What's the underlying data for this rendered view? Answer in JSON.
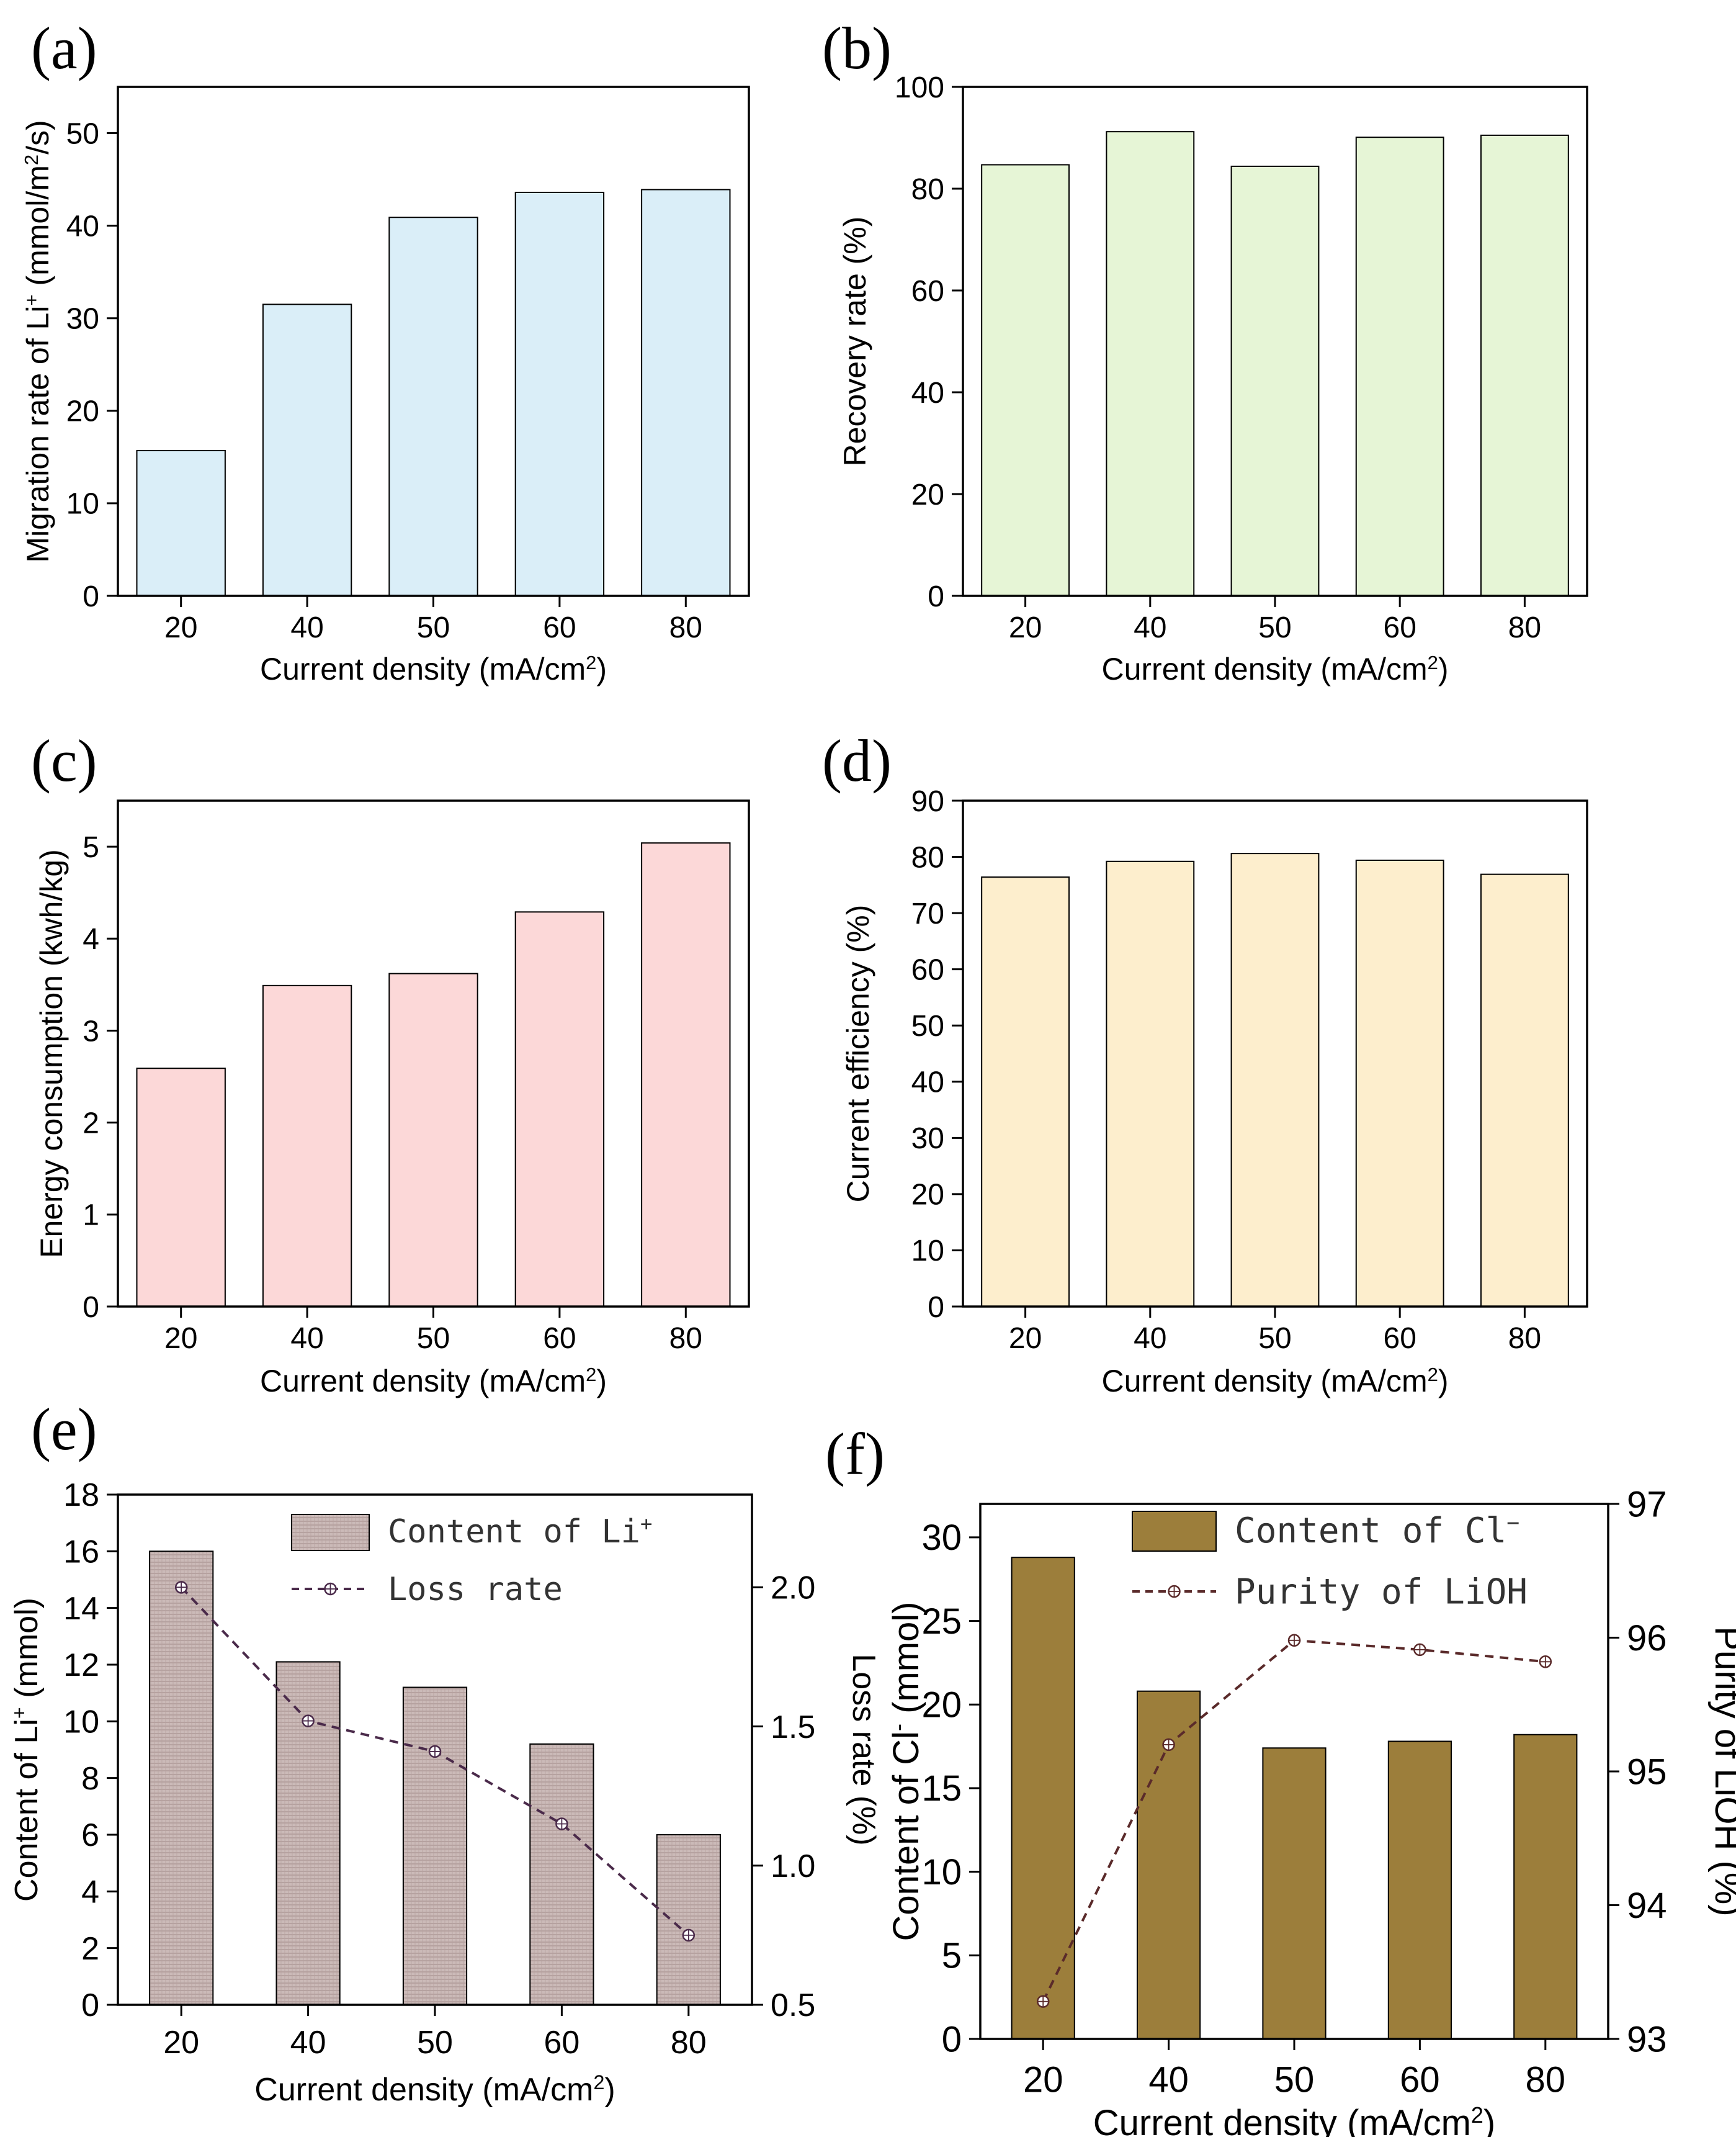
{
  "chart_data": [
    {
      "id": "a",
      "panel_label": "(a)",
      "type": "bar",
      "categories": [
        "20",
        "40",
        "50",
        "60",
        "80"
      ],
      "values": [
        15.7,
        31.5,
        40.9,
        43.6,
        43.9
      ],
      "xlabel": "Current density (mA/cm",
      "xlabel_sup": "2",
      "xlabel_end": ")",
      "ylabel": "Migration rate of Li",
      "ylabel_sup": "+",
      "ylabel_mid": " (mmol/m",
      "ylabel_sup2": "2",
      "ylabel_end": "/s)",
      "ylim": [
        0,
        55
      ],
      "yticks": [
        "0",
        "10",
        "20",
        "30",
        "40",
        "50"
      ],
      "bar_color": "#daeef8",
      "grid": false
    },
    {
      "id": "b",
      "panel_label": "(b)",
      "type": "bar",
      "categories": [
        "20",
        "40",
        "50",
        "60",
        "80"
      ],
      "values": [
        84.7,
        91.2,
        84.4,
        90.1,
        90.5
      ],
      "xlabel": "Current density (mA/cm",
      "xlabel_sup": "2",
      "xlabel_end": ")",
      "ylabel": "Recovery rate (%)",
      "ylim": [
        0,
        100
      ],
      "yticks": [
        "0",
        "20",
        "40",
        "60",
        "80",
        "100"
      ],
      "bar_color": "#e6f5d6",
      "grid": false
    },
    {
      "id": "c",
      "panel_label": "(c)",
      "type": "bar",
      "categories": [
        "20",
        "40",
        "50",
        "60",
        "80"
      ],
      "values": [
        2.59,
        3.49,
        3.62,
        4.29,
        5.04
      ],
      "xlabel": "Current density (mA/cm",
      "xlabel_sup": "2",
      "xlabel_end": ")",
      "ylabel": "Energy consumption (kwh/kg)",
      "ylim": [
        0,
        5.5
      ],
      "yticks": [
        "0",
        "1",
        "2",
        "3",
        "4",
        "5"
      ],
      "bar_color": "#fcd8d8",
      "grid": false
    },
    {
      "id": "d",
      "panel_label": "(d)",
      "type": "bar",
      "categories": [
        "20",
        "40",
        "50",
        "60",
        "80"
      ],
      "values": [
        76.4,
        79.2,
        80.6,
        79.4,
        76.9
      ],
      "xlabel": "Current density (mA/cm",
      "xlabel_sup": "2",
      "xlabel_end": ")",
      "ylabel": "Current efficiency (%)",
      "ylim": [
        0,
        90
      ],
      "yticks": [
        "0",
        "10",
        "20",
        "30",
        "40",
        "50",
        "60",
        "70",
        "80",
        "90"
      ],
      "bar_color": "#fdeecd",
      "grid": false
    },
    {
      "id": "e",
      "panel_label": "(e)",
      "type": "bar+line",
      "categories": [
        "20",
        "40",
        "50",
        "60",
        "80"
      ],
      "series": [
        {
          "name": "Content of Li",
          "name_sup": "+",
          "kind": "bar",
          "axis": "left",
          "values": [
            16.0,
            12.1,
            11.2,
            9.2,
            6.0
          ],
          "color": "#c9b8b6"
        },
        {
          "name": "Loss rate",
          "kind": "line",
          "axis": "right",
          "values": [
            2.0,
            1.52,
            1.41,
            1.15,
            0.75
          ],
          "color": "#4a2a4a"
        }
      ],
      "xlabel": "Current density (mA/cm",
      "xlabel_sup": "2",
      "xlabel_end": ")",
      "ylabel": "Content of Li",
      "ylabel_sup": "+",
      "ylabel_end": " (mmol)",
      "ylabel_right": "Loss rate (%)",
      "ylim": [
        0,
        18
      ],
      "ylim_right": [
        0.5,
        2.333
      ],
      "yticks": [
        "0",
        "2",
        "4",
        "6",
        "8",
        "10",
        "12",
        "14",
        "16",
        "18"
      ],
      "yticks_right": [
        "0.5",
        "1.0",
        "1.5",
        "2.0"
      ],
      "yticks_right_values": [
        0.5,
        1.0,
        1.5,
        2.0
      ],
      "legend_position": "top-center",
      "grid": false
    },
    {
      "id": "f",
      "panel_label": "(f)",
      "type": "bar+line",
      "categories": [
        "20",
        "40",
        "50",
        "60",
        "80"
      ],
      "series": [
        {
          "name": "Content of Cl",
          "name_sup": "−",
          "kind": "bar",
          "axis": "left",
          "values": [
            28.8,
            20.8,
            17.4,
            17.8,
            18.2
          ],
          "color": "#9c7e3b"
        },
        {
          "name": "Purity of LiOH",
          "kind": "line",
          "axis": "right",
          "values": [
            93.28,
            95.2,
            95.98,
            95.91,
            95.82
          ],
          "color": "#5a2a2a"
        }
      ],
      "xlabel": "Current density (mA/cm",
      "xlabel_sup": "2",
      "xlabel_end": ")",
      "ylabel": "Content of Cl",
      "ylabel_sup": "-",
      "ylabel_end": " (mmol)",
      "ylabel_right": "Purity of LiOH (%)",
      "ylim": [
        0,
        32
      ],
      "ylim_right": [
        93,
        97
      ],
      "yticks": [
        "0",
        "5",
        "10",
        "15",
        "20",
        "25",
        "30"
      ],
      "yticks_values": [
        0,
        5,
        10,
        15,
        20,
        25,
        30
      ],
      "yticks_right": [
        "93",
        "94",
        "95",
        "96",
        "97"
      ],
      "yticks_right_values": [
        93,
        94,
        95,
        96,
        97
      ],
      "legend_position": "top-center",
      "grid": false
    }
  ]
}
